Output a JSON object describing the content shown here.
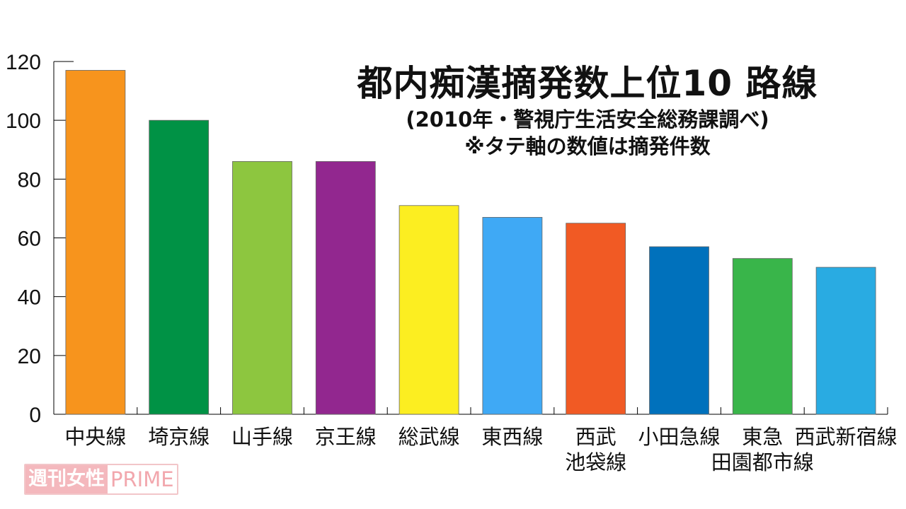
{
  "chart_data": {
    "type": "bar",
    "title": "都内痴漢摘発数上位10 路線",
    "subtitle_lines": [
      "(2010年・警視庁生活安全総務課調べ)",
      "※タテ軸の数値は摘発件数"
    ],
    "categories": [
      [
        "中央線"
      ],
      [
        "埼京線"
      ],
      [
        "山手線"
      ],
      [
        "京王線"
      ],
      [
        "総武線"
      ],
      [
        "東西線"
      ],
      [
        "西武",
        "池袋線"
      ],
      [
        "小田急線"
      ],
      [
        "東急",
        "田園都市線"
      ],
      [
        "西武新宿線"
      ]
    ],
    "values": [
      117,
      100,
      86,
      86,
      71,
      67,
      65,
      57,
      53,
      50
    ],
    "colors": [
      "#f7941d",
      "#009245",
      "#8dc63f",
      "#92278f",
      "#fcee21",
      "#3fa9f5",
      "#f15a24",
      "#0071bc",
      "#39b54a",
      "#29abe2"
    ],
    "yticks": [
      0,
      20,
      40,
      60,
      80,
      100,
      120
    ],
    "ylim": [
      0,
      120
    ],
    "grid": false,
    "legend": "none"
  },
  "watermark": {
    "jp": "週刊女性",
    "en": "PRIME"
  }
}
